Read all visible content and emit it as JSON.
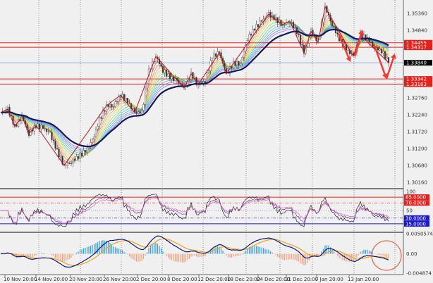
{
  "chart_data": {
    "type": "candlestick",
    "main": {
      "close": [
        1.32305,
        1.32413,
        1.31871,
        1.32196,
        1.31654,
        1.31914,
        1.31828,
        1.31654,
        1.31113,
        1.3068,
        1.30788,
        1.30961,
        1.31113,
        1.31438,
        1.32088,
        1.32521,
        1.32521,
        1.32846,
        1.3263,
        1.32305,
        1.32305,
        1.33605,
        1.34038,
        1.33605,
        1.33388,
        1.3328,
        1.33063,
        1.33497,
        1.33171,
        1.3328,
        1.34038,
        1.34147,
        1.33497,
        1.33822,
        1.33822,
        1.3458,
        1.34905,
        1.35122,
        1.35338,
        1.35165,
        1.35013,
        1.35122,
        1.34797,
        1.34147,
        1.34797,
        1.34472,
        1.35555,
        1.35013,
        1.3458,
        1.34255,
        1.34038,
        1.34688,
        1.3458,
        1.34298,
        1.34212,
        1.3384
      ],
      "ylim": [
        1.299,
        1.358
      ],
      "price_ticks": [
        "1.35360",
        "1.34840",
        "1.32760",
        "1.32240",
        "1.31720",
        "1.31200",
        "1.30680",
        "1.30160"
      ],
      "levels": [
        {
          "value": "1.34455",
          "color": "#e8201c"
        },
        {
          "value": "1.34317",
          "color": "#e8201c"
        },
        {
          "value": "1.33342",
          "color": "#e8201c"
        },
        {
          "value": "1.33183",
          "color": "#e8201c"
        }
      ],
      "current_price": {
        "value": "1.33840",
        "color": "#000000",
        "line_color": "#7b9bd6"
      },
      "ma_color": "#0d1a5c",
      "zigzag_color": "#c0141a",
      "arrow_color": "#ee3b35"
    },
    "rsi": {
      "ticks": [
        "100",
        "50"
      ],
      "levels": [
        {
          "value": "85.0000",
          "color": "#e8201c"
        },
        {
          "value": "70.0000",
          "color": "#e8201c"
        },
        {
          "value": "30.0000",
          "color": "#1a1acc"
        },
        {
          "value": "15.0000",
          "color": "#1a1acc"
        }
      ],
      "series_colors": [
        "#222222",
        "#7a3aa8",
        "#e06aa8"
      ]
    },
    "macd": {
      "ticks": [
        "0.0050574",
        "0.00",
        "-0.004874"
      ],
      "ylim": [
        -0.004874,
        0.0050574
      ],
      "hist_pos_color": "#3a9ee0",
      "hist_neg_color": "#f4a27a",
      "macd_color": "#0d1a7a",
      "signal_color": "#f0a020",
      "highlight_circle_color": "#e86a50"
    },
    "time_labels": [
      "10 Nov 20:00",
      "14 Nov 20:00",
      "20 Nov 20:00",
      "26 Nov 20:00",
      "2 Dec 20:00",
      "8 Dec 20:00",
      "12 Dec 20:00",
      "18 Dec 20:00",
      "24 Dec 20:00",
      "31 Dec 20:00",
      "7 Jan 20:00",
      "13 Jan 20:00"
    ]
  }
}
